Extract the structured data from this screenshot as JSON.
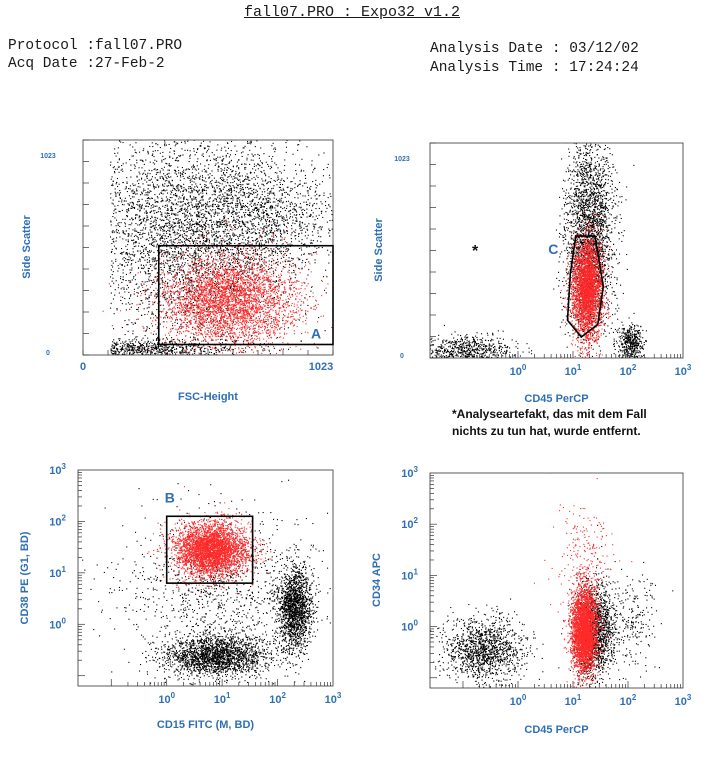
{
  "header": {
    "title": "fall07.PRO : Expo32 v1.2",
    "protocol": "Protocol :fall07.PRO",
    "acq_date": "Acq Date :27-Feb-2",
    "analysis_date": "Analysis Date : 03/12/02",
    "analysis_time": "Analysis Time : 17:24:24"
  },
  "footnote": {
    "asterisk": "*",
    "line1": "*Analyseartefakt, das mit dem Fall",
    "line2": "nichts zu tun hat, wurde entfernt."
  },
  "colors": {
    "accent": "#2f6fb5",
    "events_gated": "#ff2a2a",
    "events_other": "#000000"
  },
  "chart_data": [
    {
      "id": "p1",
      "type": "scatter",
      "scale": "linear",
      "xlabel": "FSC-Height",
      "ylabel": "Side Scatter",
      "xlim": [
        0,
        1023
      ],
      "ylim": [
        0,
        1023
      ],
      "x_ticks": [
        "0",
        "1023"
      ],
      "y_ticks": [
        "0",
        "1023"
      ],
      "gates": [
        {
          "label": "A",
          "shape": "rect",
          "x": [
            310,
            1023
          ],
          "y": [
            50,
            520
          ]
        }
      ],
      "clusters": [
        {
          "color": "black",
          "n": 4200,
          "cx": 420,
          "cy": 600,
          "sx": 230,
          "sy": 260,
          "xmin": 110,
          "ymin": 20
        },
        {
          "color": "black",
          "n": 900,
          "cx": 250,
          "cy": 30,
          "sx": 200,
          "sy": 25,
          "xmin": 110,
          "ymin": 0
        },
        {
          "color": "black",
          "n": 900,
          "cx": 760,
          "cy": 650,
          "sx": 150,
          "sy": 140
        },
        {
          "color": "red",
          "n": 3600,
          "cx": 600,
          "cy": 260,
          "sx": 140,
          "sy": 110
        }
      ]
    },
    {
      "id": "p2",
      "type": "scatter",
      "scale": "log",
      "xlabel": "CD45 PerCP",
      "ylabel": "Side Scatter",
      "xlim": [
        -1.6,
        3
      ],
      "ylim": [
        0,
        1023
      ],
      "x_ticks": [
        "10^0",
        "10^1",
        "10^2",
        "10^3"
      ],
      "y_ticks": [
        "0",
        "1023"
      ],
      "gates": [
        {
          "label": "C",
          "shape": "polygon",
          "points": [
            [
              0.9,
              180
            ],
            [
              1.15,
              100
            ],
            [
              1.45,
              160
            ],
            [
              1.55,
              340
            ],
            [
              1.4,
              580
            ],
            [
              1.05,
              580
            ],
            [
              0.95,
              400
            ]
          ]
        }
      ],
      "clusters": [
        {
          "color": "black",
          "n": 2600,
          "cx": 1.3,
          "cy": 580,
          "sx": 0.22,
          "sy": 230
        },
        {
          "color": "black",
          "n": 700,
          "cx": -1.0,
          "cy": 40,
          "sx": 0.45,
          "sy": 35
        },
        {
          "color": "black",
          "n": 450,
          "cx": 2.05,
          "cy": 70,
          "sx": 0.12,
          "sy": 45
        },
        {
          "color": "red",
          "n": 3200,
          "cx": 1.25,
          "cy": 330,
          "sx": 0.14,
          "sy": 120
        }
      ]
    },
    {
      "id": "p3",
      "type": "scatter",
      "scale": "log",
      "xlabel": "CD15 FITC (M, BD)",
      "ylabel": "CD38 PE (G1, BD)",
      "xlim": [
        -1.6,
        3
      ],
      "ylim": [
        -1.2,
        3
      ],
      "x_ticks": [
        "10^0",
        "10^1",
        "10^2",
        "10^3"
      ],
      "y_ticks": [
        "10^0",
        "10^1",
        "10^2",
        "10^3"
      ],
      "gates": [
        {
          "label": "B",
          "shape": "rect",
          "x": [
            0,
            1.55
          ],
          "y": [
            0.8,
            2.1
          ]
        }
      ],
      "clusters": [
        {
          "color": "black",
          "n": 2000,
          "cx": 0.9,
          "cy": -0.6,
          "sx": 0.45,
          "sy": 0.2
        },
        {
          "color": "black",
          "n": 1700,
          "cx": 2.3,
          "cy": 0.3,
          "sx": 0.15,
          "sy": 0.4
        },
        {
          "color": "black",
          "n": 1100,
          "cx": 1.0,
          "cy": 0.6,
          "sx": 0.9,
          "sy": 0.8
        },
        {
          "color": "red",
          "n": 3600,
          "cx": 0.8,
          "cy": 1.45,
          "sx": 0.33,
          "sy": 0.26
        }
      ]
    },
    {
      "id": "p4",
      "type": "scatter",
      "scale": "log",
      "xlabel": "CD45 PerCP",
      "ylabel": "CD34 APC",
      "xlim": [
        -1.6,
        3
      ],
      "ylim": [
        -1.2,
        3
      ],
      "x_ticks": [
        "10^0",
        "10^1",
        "10^2",
        "10^3"
      ],
      "y_ticks": [
        "10^0",
        "10^1",
        "10^2",
        "10^3"
      ],
      "gates": [],
      "clusters": [
        {
          "color": "black",
          "n": 1300,
          "cx": -0.6,
          "cy": -0.45,
          "sx": 0.35,
          "sy": 0.3
        },
        {
          "color": "black",
          "n": 1600,
          "cx": 1.4,
          "cy": -0.1,
          "sx": 0.18,
          "sy": 0.45
        },
        {
          "color": "black",
          "n": 200,
          "cx": 2.1,
          "cy": 0.1,
          "sx": 0.2,
          "sy": 0.4
        },
        {
          "color": "red",
          "n": 3400,
          "cx": 1.2,
          "cy": -0.05,
          "sx": 0.12,
          "sy": 0.42
        },
        {
          "color": "red",
          "n": 200,
          "cx": 1.2,
          "cy": 1.4,
          "sx": 0.25,
          "sy": 0.5
        }
      ]
    }
  ]
}
